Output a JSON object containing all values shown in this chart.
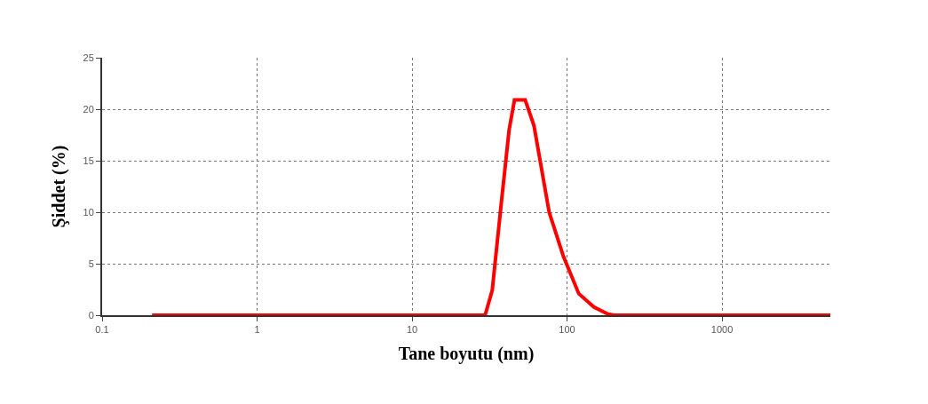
{
  "chart_data": {
    "type": "line",
    "xlabel": "Tane boyutu (nm)",
    "ylabel": "Şiddet (%)",
    "log": "x",
    "xlim": [
      0.1,
      5000
    ],
    "xticks": [
      0.1,
      1,
      10,
      100,
      1000
    ],
    "ylim": [
      0,
      25
    ],
    "yticks": [
      0,
      5,
      10,
      15,
      20,
      25
    ],
    "grid": true,
    "line_style": "solid",
    "marker": "none",
    "series": [
      {
        "color": "#ff0000",
        "x": [
          0.21,
          29.6,
          32.9,
          37.6,
          42.3,
          45.8,
          53.7,
          61.2,
          76.7,
          94.8,
          119,
          149,
          184,
          202,
          5000
        ],
        "values": [
          0,
          0,
          2.4,
          10.8,
          18,
          20.9,
          20.9,
          18.4,
          10,
          5.7,
          2.1,
          0.8,
          0.1,
          0,
          0
        ]
      }
    ]
  }
}
